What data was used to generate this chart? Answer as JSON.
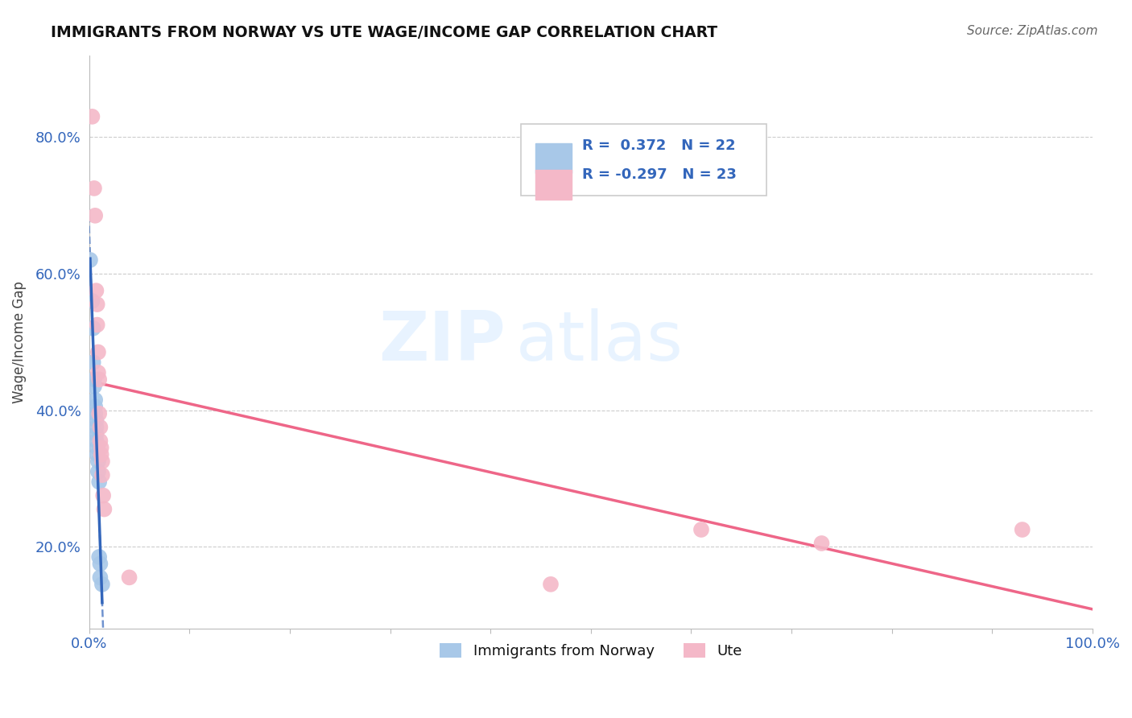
{
  "title": "IMMIGRANTS FROM NORWAY VS UTE WAGE/INCOME GAP CORRELATION CHART",
  "source": "Source: ZipAtlas.com",
  "ylabel": "Wage/Income Gap",
  "xlim": [
    0.0,
    1.0
  ],
  "ylim": [
    0.08,
    0.92
  ],
  "xticks": [
    0.0,
    0.1,
    0.2,
    0.3,
    0.4,
    0.5,
    0.6,
    0.7,
    0.8,
    0.9,
    1.0
  ],
  "xticklabels": [
    "0.0%",
    "",
    "",
    "",
    "",
    "",
    "",
    "",
    "",
    "",
    "100.0%"
  ],
  "yticks": [
    0.2,
    0.4,
    0.6,
    0.8
  ],
  "yticklabels": [
    "20.0%",
    "40.0%",
    "60.0%",
    "80.0%"
  ],
  "R_norway": 0.372,
  "N_norway": 22,
  "R_ute": -0.297,
  "N_ute": 23,
  "norway_color": "#A8C8E8",
  "ute_color": "#F4B8C8",
  "norway_line_color": "#3366BB",
  "ute_line_color": "#EE6688",
  "norway_scatter": [
    [
      0.001,
      0.62
    ],
    [
      0.003,
      0.56
    ],
    [
      0.004,
      0.52
    ],
    [
      0.004,
      0.47
    ],
    [
      0.005,
      0.445
    ],
    [
      0.005,
      0.435
    ],
    [
      0.006,
      0.415
    ],
    [
      0.006,
      0.405
    ],
    [
      0.006,
      0.395
    ],
    [
      0.007,
      0.385
    ],
    [
      0.007,
      0.375
    ],
    [
      0.007,
      0.365
    ],
    [
      0.007,
      0.355
    ],
    [
      0.008,
      0.345
    ],
    [
      0.008,
      0.335
    ],
    [
      0.009,
      0.325
    ],
    [
      0.009,
      0.31
    ],
    [
      0.01,
      0.295
    ],
    [
      0.01,
      0.185
    ],
    [
      0.011,
      0.175
    ],
    [
      0.011,
      0.155
    ],
    [
      0.013,
      0.145
    ]
  ],
  "ute_scatter": [
    [
      0.003,
      0.83
    ],
    [
      0.005,
      0.725
    ],
    [
      0.006,
      0.685
    ],
    [
      0.007,
      0.575
    ],
    [
      0.008,
      0.555
    ],
    [
      0.008,
      0.525
    ],
    [
      0.009,
      0.485
    ],
    [
      0.009,
      0.455
    ],
    [
      0.01,
      0.445
    ],
    [
      0.01,
      0.395
    ],
    [
      0.011,
      0.375
    ],
    [
      0.011,
      0.355
    ],
    [
      0.012,
      0.345
    ],
    [
      0.012,
      0.335
    ],
    [
      0.013,
      0.325
    ],
    [
      0.013,
      0.305
    ],
    [
      0.014,
      0.275
    ],
    [
      0.015,
      0.255
    ],
    [
      0.04,
      0.155
    ],
    [
      0.46,
      0.145
    ],
    [
      0.61,
      0.225
    ],
    [
      0.73,
      0.205
    ],
    [
      0.93,
      0.225
    ]
  ],
  "watermark_zip": "ZIP",
  "watermark_atlas": "atlas",
  "grid_color": "#CCCCCC",
  "background_color": "#FFFFFF"
}
